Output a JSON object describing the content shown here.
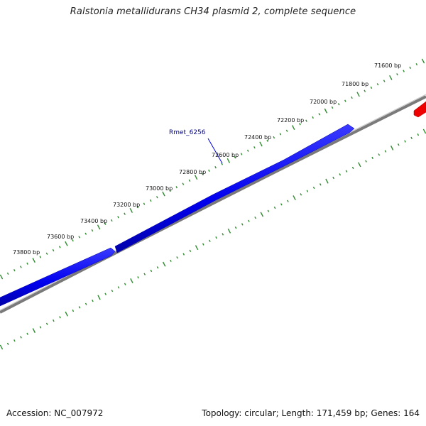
{
  "title": "Ralstonia metallidurans CH34 plasmid 2, complete sequence",
  "footer": {
    "accession": "Accession: NC_007972",
    "summary": "Topology: circular; Length: 171,459 bp; Genes: 164"
  },
  "colors": {
    "gene_forward": "#0000ee",
    "gene_other": "#ee0000",
    "backbone": "#808080",
    "ticks": "#2e8b2e",
    "gene_label": "#00008b"
  },
  "tick_labels": [
    "71600 bp",
    "71800 bp",
    "72000 bp",
    "72200 bp",
    "72400 bp",
    "72600 bp",
    "72800 bp",
    "73000 bp",
    "73200 bp",
    "73400 bp",
    "73600 bp",
    "73800 bp"
  ],
  "genes": [
    {
      "name": "Rmet_6256",
      "strand": "-",
      "color": "blue"
    }
  ]
}
